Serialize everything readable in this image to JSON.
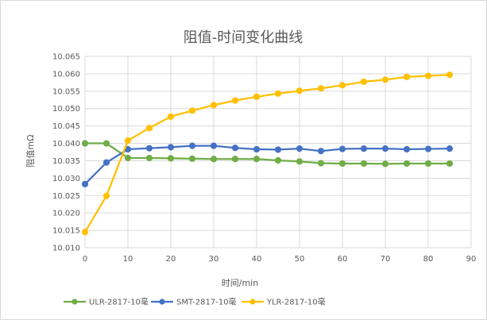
{
  "chart_data": {
    "type": "line",
    "title": "阻值-时间变化曲线",
    "xlabel": "时间/min",
    "ylabel": "阻值mΩ",
    "xlim": [
      0,
      90
    ],
    "ylim": [
      10.01,
      10.065
    ],
    "xticks": [
      0,
      10,
      20,
      30,
      40,
      50,
      60,
      70,
      80,
      90
    ],
    "yticks": [
      "10.010",
      "10.015",
      "10.020",
      "10.025",
      "10.030",
      "10.035",
      "10.040",
      "10.045",
      "10.050",
      "10.055",
      "10.060",
      "10.065"
    ],
    "grid": true,
    "legend_position": "bottom",
    "x": [
      0,
      5,
      10,
      15,
      20,
      25,
      30,
      35,
      40,
      45,
      50,
      55,
      60,
      65,
      70,
      75,
      80,
      85
    ],
    "series": [
      {
        "name": "ULR-2817-10毫",
        "color": "#70ad47",
        "values": [
          10.04,
          10.04,
          10.0358,
          10.0358,
          10.0357,
          10.0356,
          10.0355,
          10.0355,
          10.0355,
          10.0351,
          10.0348,
          10.0343,
          10.0342,
          10.0342,
          10.0341,
          10.0342,
          10.0342,
          10.0342
        ]
      },
      {
        "name": "SMT-2817-10毫",
        "color": "#4472c4",
        "values": [
          10.0283,
          10.0345,
          10.0383,
          10.0386,
          10.0389,
          10.0393,
          10.0393,
          10.0387,
          10.0383,
          10.0382,
          10.0385,
          10.0378,
          10.0384,
          10.0385,
          10.0385,
          10.0383,
          10.0384,
          10.0385
        ]
      },
      {
        "name": "YLR-2817-10毫",
        "color": "#ffc000",
        "values": [
          10.0145,
          10.0249,
          10.0408,
          10.0444,
          10.0477,
          10.0494,
          10.051,
          10.0523,
          10.0534,
          10.0543,
          10.0551,
          10.0558,
          10.0567,
          10.0577,
          10.0583,
          10.0591,
          10.0594,
          10.0597
        ]
      }
    ]
  }
}
